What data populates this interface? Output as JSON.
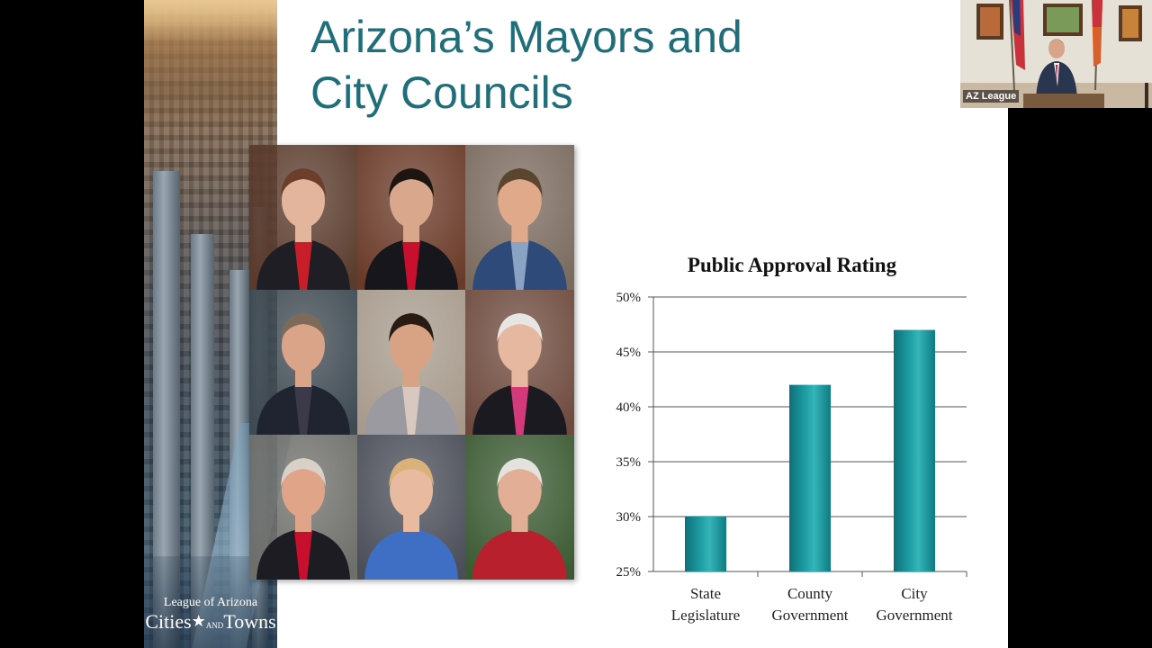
{
  "slide": {
    "title_line1": "Arizona’s Mayors and",
    "title_line2": "City Councils",
    "logo": {
      "line1": "League of Arizona",
      "word_cities": "Cities",
      "word_and": "AND",
      "word_towns": "Towns"
    }
  },
  "portraits": [
    {
      "name": "portrait-1",
      "bg": "#5a3b2c",
      "suit": "#1e1e24",
      "skin": "#e2b59c",
      "hair": "#6b3f2b",
      "accent": "#c81e2a"
    },
    {
      "name": "portrait-2",
      "bg": "#6a3a28",
      "suit": "#16161c",
      "skin": "#d9a88c",
      "hair": "#1c1512",
      "accent": "#c8102e"
    },
    {
      "name": "portrait-3",
      "bg": "#7a6a5e",
      "suit": "#2e4a78",
      "skin": "#e0aa8a",
      "hair": "#5b4530",
      "accent": "#8aa2c4"
    },
    {
      "name": "portrait-4",
      "bg": "#3f4a52",
      "suit": "#1f2430",
      "skin": "#d9a487",
      "hair": "#7d6a58",
      "accent": "#3c3a4a"
    },
    {
      "name": "portrait-5",
      "bg": "#a79a8c",
      "suit": "#9a9aa0",
      "skin": "#d8a385",
      "hair": "#2a1a14",
      "accent": "#d9c8c0"
    },
    {
      "name": "portrait-6",
      "bg": "#6e4a3e",
      "suit": "#1a1a20",
      "skin": "#e6b8a0",
      "hair": "#e8e6e2",
      "accent": "#d43a7a"
    },
    {
      "name": "portrait-7",
      "bg": "#6e6e6a",
      "suit": "#1c1c22",
      "skin": "#e0a488",
      "hair": "#d7d1c8",
      "accent": "#c8102e"
    },
    {
      "name": "portrait-8",
      "bg": "#4a4e58",
      "suit": "#3f6fc4",
      "skin": "#e8bba0",
      "hair": "#d9b27a",
      "accent": "#3f6fc4"
    },
    {
      "name": "portrait-9",
      "bg": "#3b5a32",
      "suit": "#b8202e",
      "skin": "#e2ae96",
      "hair": "#e4e2dc",
      "accent": "#b8202e"
    }
  ],
  "chart_data": {
    "type": "bar",
    "title": "Public Approval Rating",
    "categories": [
      [
        "State",
        "Legislature"
      ],
      [
        "County",
        "Government"
      ],
      [
        "City",
        "Government"
      ]
    ],
    "values": [
      30,
      42,
      47
    ],
    "ylim": [
      25,
      50
    ],
    "yticks": [
      25,
      30,
      35,
      40,
      45,
      50
    ],
    "tick_suffix": "%",
    "grid": true,
    "bar_color": "#1b9aa0"
  },
  "webcam": {
    "label": "AZ League"
  }
}
